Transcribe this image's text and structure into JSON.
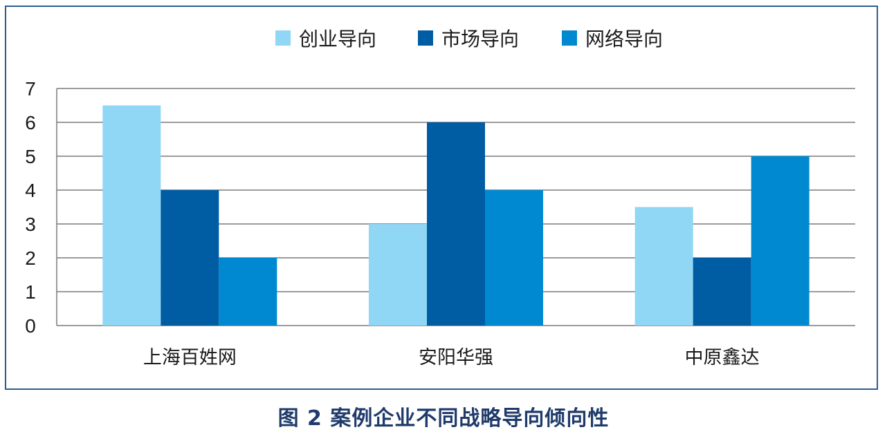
{
  "chart_data": {
    "type": "bar",
    "categories": [
      "上海百姓网",
      "安阳华强",
      "中原鑫达"
    ],
    "series": [
      {
        "name": "创业导向",
        "values": [
          6.5,
          3,
          3.5
        ],
        "color": "#8fd7f5"
      },
      {
        "name": "市场导向",
        "values": [
          4,
          6,
          2
        ],
        "color": "#005ca3"
      },
      {
        "name": "网络导向",
        "values": [
          2,
          4,
          5
        ],
        "color": "#0089d0"
      }
    ],
    "yticks": [
      "0",
      "1",
      "2",
      "3",
      "4",
      "5",
      "6",
      "7"
    ],
    "ylim": [
      0,
      7
    ],
    "grid": true,
    "legend_position": "top"
  },
  "caption": "图 2  案例企业不同战略导向倾向性"
}
